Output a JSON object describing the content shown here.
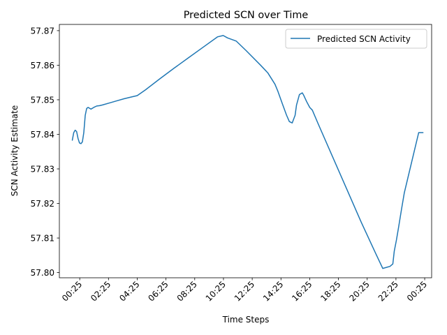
{
  "chart_data": {
    "type": "line",
    "title": "Predicted SCN over Time",
    "xlabel": "Time Steps",
    "ylabel": "SCN Activity Estimate",
    "x_unit": "hours",
    "xlim": [
      -1.0,
      24.9
    ],
    "ylim": [
      57.7985,
      57.8718
    ],
    "x_ticks": [
      {
        "value": 0.417,
        "label": "00:25"
      },
      {
        "value": 2.417,
        "label": "02:25"
      },
      {
        "value": 4.417,
        "label": "04:25"
      },
      {
        "value": 6.417,
        "label": "06:25"
      },
      {
        "value": 8.417,
        "label": "08:25"
      },
      {
        "value": 10.417,
        "label": "10:25"
      },
      {
        "value": 12.417,
        "label": "12:25"
      },
      {
        "value": 14.417,
        "label": "14:25"
      },
      {
        "value": 16.417,
        "label": "16:25"
      },
      {
        "value": 18.417,
        "label": "18:25"
      },
      {
        "value": 20.417,
        "label": "20:25"
      },
      {
        "value": 22.417,
        "label": "22:25"
      },
      {
        "value": 24.417,
        "label": "00:25"
      }
    ],
    "y_ticks": [
      {
        "value": 57.8,
        "label": "57.80"
      },
      {
        "value": 57.81,
        "label": "57.81"
      },
      {
        "value": 57.82,
        "label": "57.82"
      },
      {
        "value": 57.83,
        "label": "57.83"
      },
      {
        "value": 57.84,
        "label": "57.84"
      },
      {
        "value": 57.85,
        "label": "57.85"
      },
      {
        "value": 57.86,
        "label": "57.86"
      },
      {
        "value": 57.87,
        "label": "57.87"
      }
    ],
    "legend_position": "top-right",
    "grid": false,
    "series": [
      {
        "name": "Predicted SCN Activity",
        "color": "#1f77b4",
        "x": [
          -0.1,
          0.0,
          0.1,
          0.2,
          0.3,
          0.4,
          0.5,
          0.6,
          0.7,
          0.8,
          0.9,
          1.0,
          1.2,
          1.4,
          1.6,
          1.8,
          2.0,
          2.5,
          3.0,
          3.5,
          4.0,
          4.417,
          5.0,
          6.0,
          7.0,
          8.0,
          9.0,
          10.0,
          10.4,
          10.7,
          10.9,
          11.1,
          11.3,
          12.0,
          13.0,
          13.5,
          14.0,
          14.2,
          14.5,
          14.8,
          15.0,
          15.2,
          15.4,
          15.5,
          15.7,
          15.9,
          16.0,
          16.2,
          16.417,
          16.6,
          17.0,
          18.0,
          19.0,
          20.0,
          21.0,
          21.5,
          22.0,
          22.2,
          22.3,
          22.45,
          22.6,
          22.8,
          23.0,
          23.5,
          24.0,
          24.3
        ],
        "y": [
          57.8383,
          57.8405,
          57.8412,
          57.8408,
          57.8388,
          57.8375,
          57.8373,
          57.8378,
          57.8405,
          57.8455,
          57.8475,
          57.8478,
          57.8473,
          57.8478,
          57.8482,
          57.8483,
          57.8485,
          57.8491,
          57.8497,
          57.8503,
          57.8508,
          57.8512,
          57.8529,
          57.8561,
          57.8592,
          57.8622,
          57.8652,
          57.8682,
          57.8686,
          57.8679,
          57.8676,
          57.8673,
          57.867,
          57.8642,
          57.86,
          57.8578,
          57.8545,
          57.8525,
          57.849,
          57.8456,
          57.8437,
          57.8433,
          57.8455,
          57.8485,
          57.8515,
          57.852,
          57.8513,
          57.8495,
          57.8478,
          57.847,
          57.8431,
          57.8336,
          57.8241,
          57.8146,
          57.8056,
          57.8012,
          57.8018,
          57.8025,
          57.8062,
          57.8094,
          57.8131,
          57.8182,
          57.8231,
          57.8318,
          57.8405,
          57.8405
        ]
      }
    ]
  }
}
